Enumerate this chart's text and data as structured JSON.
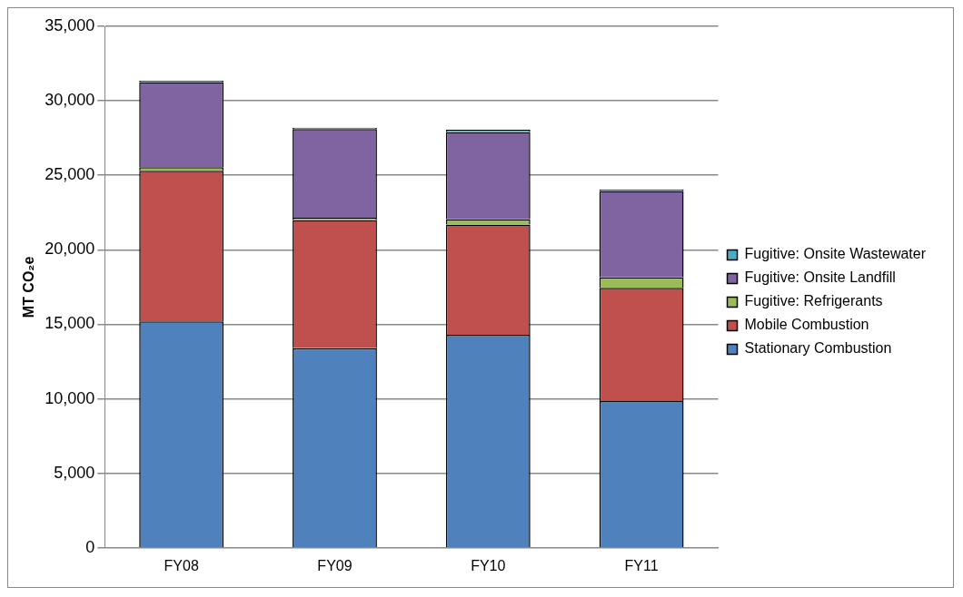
{
  "chart_data": {
    "type": "bar",
    "stacked": true,
    "ylabel": "MT CO₂e",
    "categories": [
      "FY08",
      "FY09",
      "FY10",
      "FY11"
    ],
    "series": [
      {
        "name": "Stationary Combustion",
        "color": "#4f81bd",
        "values": [
          15200,
          13400,
          14300,
          9850
        ]
      },
      {
        "name": "Mobile Combustion",
        "color": "#c0504d",
        "values": [
          10100,
          8600,
          7400,
          7600
        ]
      },
      {
        "name": "Fugitive: Refrigerants",
        "color": "#9bbb59",
        "values": [
          250,
          150,
          360,
          700
        ]
      },
      {
        "name": "Fugitive: Onsite Landfill",
        "color": "#8064a2",
        "values": [
          5700,
          5950,
          5850,
          5800
        ]
      },
      {
        "name": "Fugitive: Onsite Wastewater",
        "color": "#4bacc6",
        "values": [
          100,
          100,
          150,
          100
        ]
      }
    ],
    "ylim": [
      0,
      35000
    ],
    "yticks": [
      0,
      {
        "value": 5000,
        "label": "5,000"
      },
      {
        "value": 10000,
        "label": "10,000"
      },
      {
        "value": 15000,
        "label": "15,000"
      },
      {
        "value": 20000,
        "label": "20,000"
      },
      {
        "value": 25000,
        "label": "25,000"
      },
      {
        "value": 30000,
        "label": "30,000"
      },
      {
        "value": 35000,
        "label": "35,000"
      }
    ],
    "grid": "y",
    "legend": "right"
  }
}
